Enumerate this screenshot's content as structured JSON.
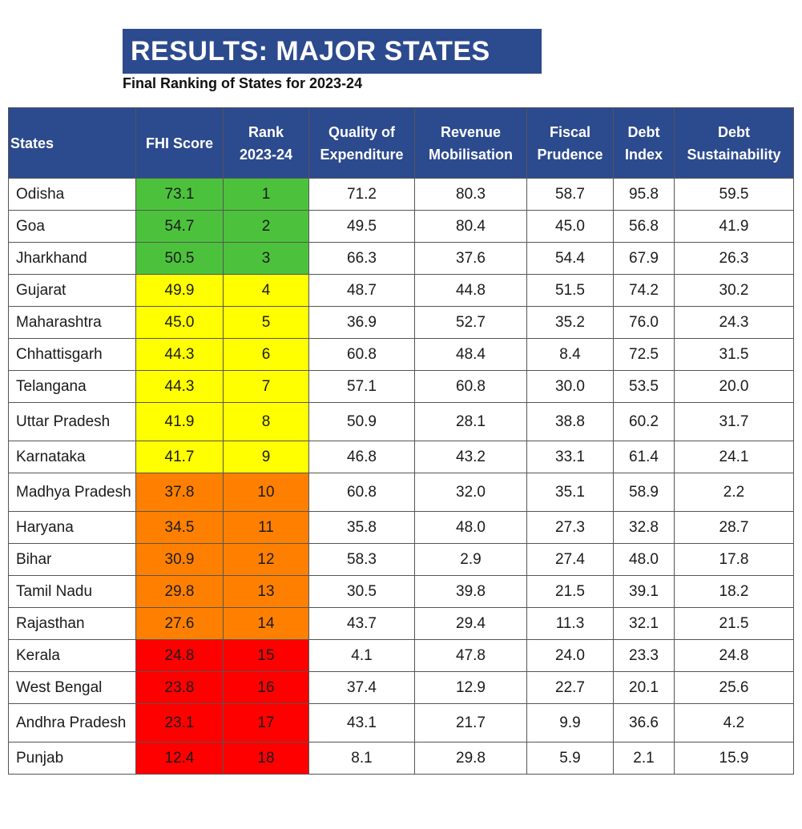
{
  "title": "RESULTS: MAJOR STATES",
  "subtitle": "Final Ranking of States for 2023-24",
  "headers": {
    "states": "States",
    "fhi_score": "FHI Score",
    "rank_l1": "Rank",
    "rank_l2": "2023-24",
    "qe_l1": "Quality of",
    "qe_l2": "Expenditure",
    "rm_l1": "Revenue",
    "rm_l2": "Mobilisation",
    "fp_l1": "Fiscal",
    "fp_l2": "Prudence",
    "di_l1": "Debt",
    "di_l2": "Index",
    "ds_l1": "Debt",
    "ds_l2": "Sustainability"
  },
  "colors": {
    "header_bg": "#2c4a8e",
    "green": "#4cc23c",
    "yellow": "#ffff00",
    "orange": "#ff8000",
    "red": "#ff0000"
  },
  "rows": [
    {
      "state": "Odisha",
      "fhi": "73.1",
      "rank": "1",
      "qe": "71.2",
      "rm": "80.3",
      "fp": "58.7",
      "di": "95.8",
      "ds": "59.5"
    },
    {
      "state": "Goa",
      "fhi": "54.7",
      "rank": "2",
      "qe": "49.5",
      "rm": "80.4",
      "fp": "45.0",
      "di": "56.8",
      "ds": "41.9"
    },
    {
      "state": "Jharkhand",
      "fhi": "50.5",
      "rank": "3",
      "qe": "66.3",
      "rm": "37.6",
      "fp": "54.4",
      "di": "67.9",
      "ds": "26.3"
    },
    {
      "state": "Gujarat",
      "fhi": "49.9",
      "rank": "4",
      "qe": "48.7",
      "rm": "44.8",
      "fp": "51.5",
      "di": "74.2",
      "ds": "30.2"
    },
    {
      "state": "Maharashtra",
      "fhi": "45.0",
      "rank": "5",
      "qe": "36.9",
      "rm": "52.7",
      "fp": "35.2",
      "di": "76.0",
      "ds": "24.3"
    },
    {
      "state": "Chhattisgarh",
      "fhi": "44.3",
      "rank": "6",
      "qe": "60.8",
      "rm": "48.4",
      "fp": "8.4",
      "di": "72.5",
      "ds": "31.5"
    },
    {
      "state": "Telangana",
      "fhi": "44.3",
      "rank": "7",
      "qe": "57.1",
      "rm": "60.8",
      "fp": "30.0",
      "di": "53.5",
      "ds": "20.0"
    },
    {
      "state": "Uttar Pradesh",
      "fhi": "41.9",
      "rank": "8",
      "qe": "50.9",
      "rm": "28.1",
      "fp": "38.8",
      "di": "60.2",
      "ds": "31.7"
    },
    {
      "state": "Karnataka",
      "fhi": "41.7",
      "rank": "9",
      "qe": "46.8",
      "rm": "43.2",
      "fp": "33.1",
      "di": "61.4",
      "ds": "24.1"
    },
    {
      "state": "Madhya Pradesh",
      "fhi": "37.8",
      "rank": "10",
      "qe": "60.8",
      "rm": "32.0",
      "fp": "35.1",
      "di": "58.9",
      "ds": "2.2"
    },
    {
      "state": "Haryana",
      "fhi": "34.5",
      "rank": "11",
      "qe": "35.8",
      "rm": "48.0",
      "fp": "27.3",
      "di": "32.8",
      "ds": "28.7"
    },
    {
      "state": "Bihar",
      "fhi": "30.9",
      "rank": "12",
      "qe": "58.3",
      "rm": "2.9",
      "fp": "27.4",
      "di": "48.0",
      "ds": "17.8"
    },
    {
      "state": "Tamil Nadu",
      "fhi": "29.8",
      "rank": "13",
      "qe": "30.5",
      "rm": "39.8",
      "fp": "21.5",
      "di": "39.1",
      "ds": "18.2"
    },
    {
      "state": "Rajasthan",
      "fhi": "27.6",
      "rank": "14",
      "qe": "43.7",
      "rm": "29.4",
      "fp": "11.3",
      "di": "32.1",
      "ds": "21.5"
    },
    {
      "state": "Kerala",
      "fhi": "24.8",
      "rank": "15",
      "qe": "4.1",
      "rm": "47.8",
      "fp": "24.0",
      "di": "23.3",
      "ds": "24.8"
    },
    {
      "state": "West Bengal",
      "fhi": "23.8",
      "rank": "16",
      "qe": "37.4",
      "rm": "12.9",
      "fp": "22.7",
      "di": "20.1",
      "ds": "25.6"
    },
    {
      "state": "Andhra Pradesh",
      "fhi": "23.1",
      "rank": "17",
      "qe": "43.1",
      "rm": "21.7",
      "fp": "9.9",
      "di": "36.6",
      "ds": "4.2"
    },
    {
      "state": "Punjab",
      "fhi": "12.4",
      "rank": "18",
      "qe": "8.1",
      "rm": "29.8",
      "fp": "5.9",
      "di": "2.1",
      "ds": "15.9"
    }
  ]
}
